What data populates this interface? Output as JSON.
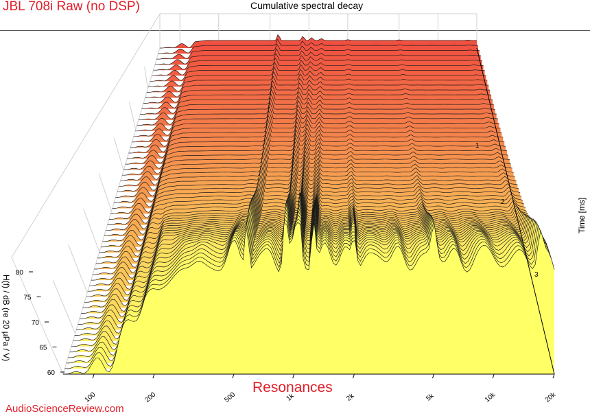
{
  "header": {
    "title": "JBL 708i Raw (no DSP)",
    "subtitle": "Cumulative spectral decay"
  },
  "annotation": "Resonances",
  "watermark": "AudioScienceReview.com",
  "colors": {
    "title": "#e0202a",
    "front_slice": "#ffff66",
    "back_slice": "#f05040",
    "grid": "#d0d0d0"
  },
  "chart_data": {
    "type": "waterfall",
    "title": "Cumulative spectral decay",
    "xlabel": "",
    "ylabel": "H(f) / dB (re 20 µPa / V)",
    "zlabel": "Time [ms]",
    "x_scale": "log",
    "x_ticks": [
      "100",
      "200",
      "500",
      "1k",
      "2k",
      "5k",
      "10k",
      "20k"
    ],
    "x_tick_values": [
      100,
      200,
      500,
      1000,
      2000,
      5000,
      10000,
      20000
    ],
    "xlim": [
      70,
      20000
    ],
    "y_ticks": [
      "60",
      "65",
      "70",
      "75",
      "80"
    ],
    "y_tick_values": [
      60,
      65,
      70,
      75,
      80
    ],
    "ylim": [
      60,
      82
    ],
    "z_ticks": [
      "1",
      "2",
      "3"
    ],
    "z_tick_values": [
      1,
      2,
      3
    ],
    "zlim": [
      0,
      4
    ],
    "slice_count": 60,
    "ridges_hz": [
      580,
      900,
      1050,
      1250,
      2000,
      5000,
      17000
    ]
  }
}
